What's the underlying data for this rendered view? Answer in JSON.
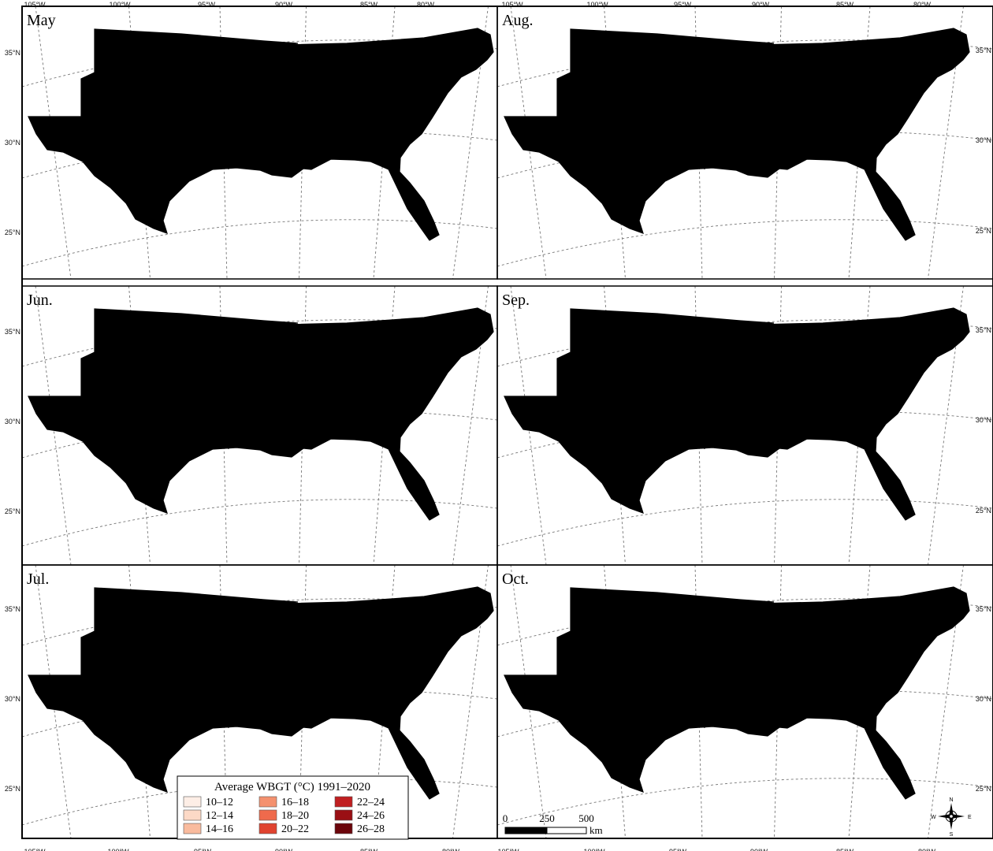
{
  "figure": {
    "panels": [
      {
        "label": "May",
        "levels": [
          1,
          2,
          3,
          4,
          5
        ]
      },
      {
        "label": "Aug.",
        "levels": [
          4,
          6,
          7,
          8,
          8
        ]
      },
      {
        "label": "Jun.",
        "levels": [
          3,
          5,
          6,
          7,
          7
        ]
      },
      {
        "label": "Sep.",
        "levels": [
          3,
          5,
          6,
          6,
          7
        ]
      },
      {
        "label": "Jul.",
        "levels": [
          4,
          6,
          7,
          8,
          8
        ]
      },
      {
        "label": "Oct.",
        "levels": [
          0,
          1,
          2,
          3,
          5
        ]
      }
    ],
    "lat_labels": [
      "35°N",
      "30°N",
      "25°N"
    ],
    "lon_labels": [
      "105°W",
      "100°W",
      "95°W",
      "90°W",
      "85°W",
      "80°W"
    ],
    "legend": {
      "title": "Average WBGT (°C) 1991–2020",
      "classes": [
        {
          "label": "10–12",
          "color": "#fdeee6"
        },
        {
          "label": "12–14",
          "color": "#fcd9c6"
        },
        {
          "label": "14–16",
          "color": "#f9bb9e"
        },
        {
          "label": "16–18",
          "color": "#f4916f"
        },
        {
          "label": "18–20",
          "color": "#ef6a4c"
        },
        {
          "label": "20–22",
          "color": "#e0432f"
        },
        {
          "label": "22–24",
          "color": "#c01f21"
        },
        {
          "label": "24–26",
          "color": "#9a0f14"
        },
        {
          "label": "26–28",
          "color": "#6b050b"
        }
      ]
    },
    "scale_bar": {
      "ticks": [
        "0",
        "250",
        "500"
      ],
      "unit": "km"
    },
    "compass": {
      "n": "N",
      "s": "S",
      "e": "E",
      "w": "W"
    }
  }
}
